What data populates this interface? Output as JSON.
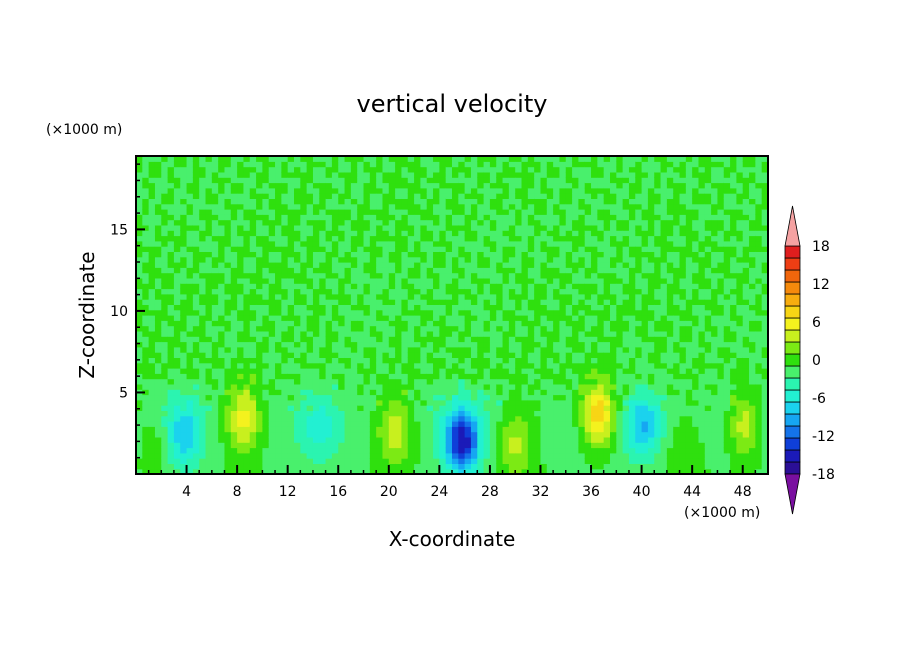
{
  "chart_data": {
    "type": "heatmap",
    "title": "vertical velocity",
    "xlabel": "X-coordinate",
    "ylabel": "Z-coordinate",
    "x_unit": "(×1000 m)",
    "y_unit": "(×1000 m)",
    "xlim": [
      0,
      50
    ],
    "ylim": [
      0,
      19.5
    ],
    "x_ticks": [
      4,
      8,
      12,
      16,
      20,
      24,
      28,
      32,
      36,
      40,
      44,
      48
    ],
    "y_ticks": [
      5,
      10,
      15
    ],
    "colorbar": {
      "levels": [
        -20,
        -18,
        -16,
        -14,
        -12,
        -10,
        -8,
        -6,
        -4,
        -2,
        0,
        2,
        4,
        6,
        8,
        10,
        12,
        14,
        16,
        18,
        20
      ],
      "tick_labels": [
        18,
        12,
        6,
        0,
        -6,
        -12,
        -18
      ],
      "colors": [
        "#7a0fa0",
        "#2b0f96",
        "#1b1ab8",
        "#0f3fd8",
        "#1473ea",
        "#16a6f2",
        "#1bd2ee",
        "#22f0d2",
        "#2bf4b0",
        "#49f06c",
        "#2fe00e",
        "#7cea14",
        "#c8f01e",
        "#f4f21e",
        "#f7d515",
        "#f7ad0f",
        "#f58a0c",
        "#f1660c",
        "#ee3e14",
        "#e01e1e",
        "#f5a2a2"
      ],
      "extend": "both"
    },
    "features": [
      {
        "x": 1.5,
        "z": 2.2,
        "w": 2.5
      },
      {
        "x": 3.8,
        "z": 2.4,
        "w": -6
      },
      {
        "x": 8.5,
        "z": 3.4,
        "w": 7
      },
      {
        "x": 20.5,
        "z": 2.6,
        "w": 6
      },
      {
        "x": 25.8,
        "z": 2.0,
        "w": -14
      },
      {
        "x": 30.0,
        "z": 1.9,
        "w": 5
      },
      {
        "x": 36.6,
        "z": 3.6,
        "w": 11
      },
      {
        "x": 40.2,
        "z": 3.0,
        "w": -7
      },
      {
        "x": 48.2,
        "z": 3.0,
        "w": 7
      },
      {
        "x": 14.5,
        "z": 2.8,
        "w": -3
      },
      {
        "x": 43.5,
        "z": 1.2,
        "w": 2
      }
    ]
  }
}
